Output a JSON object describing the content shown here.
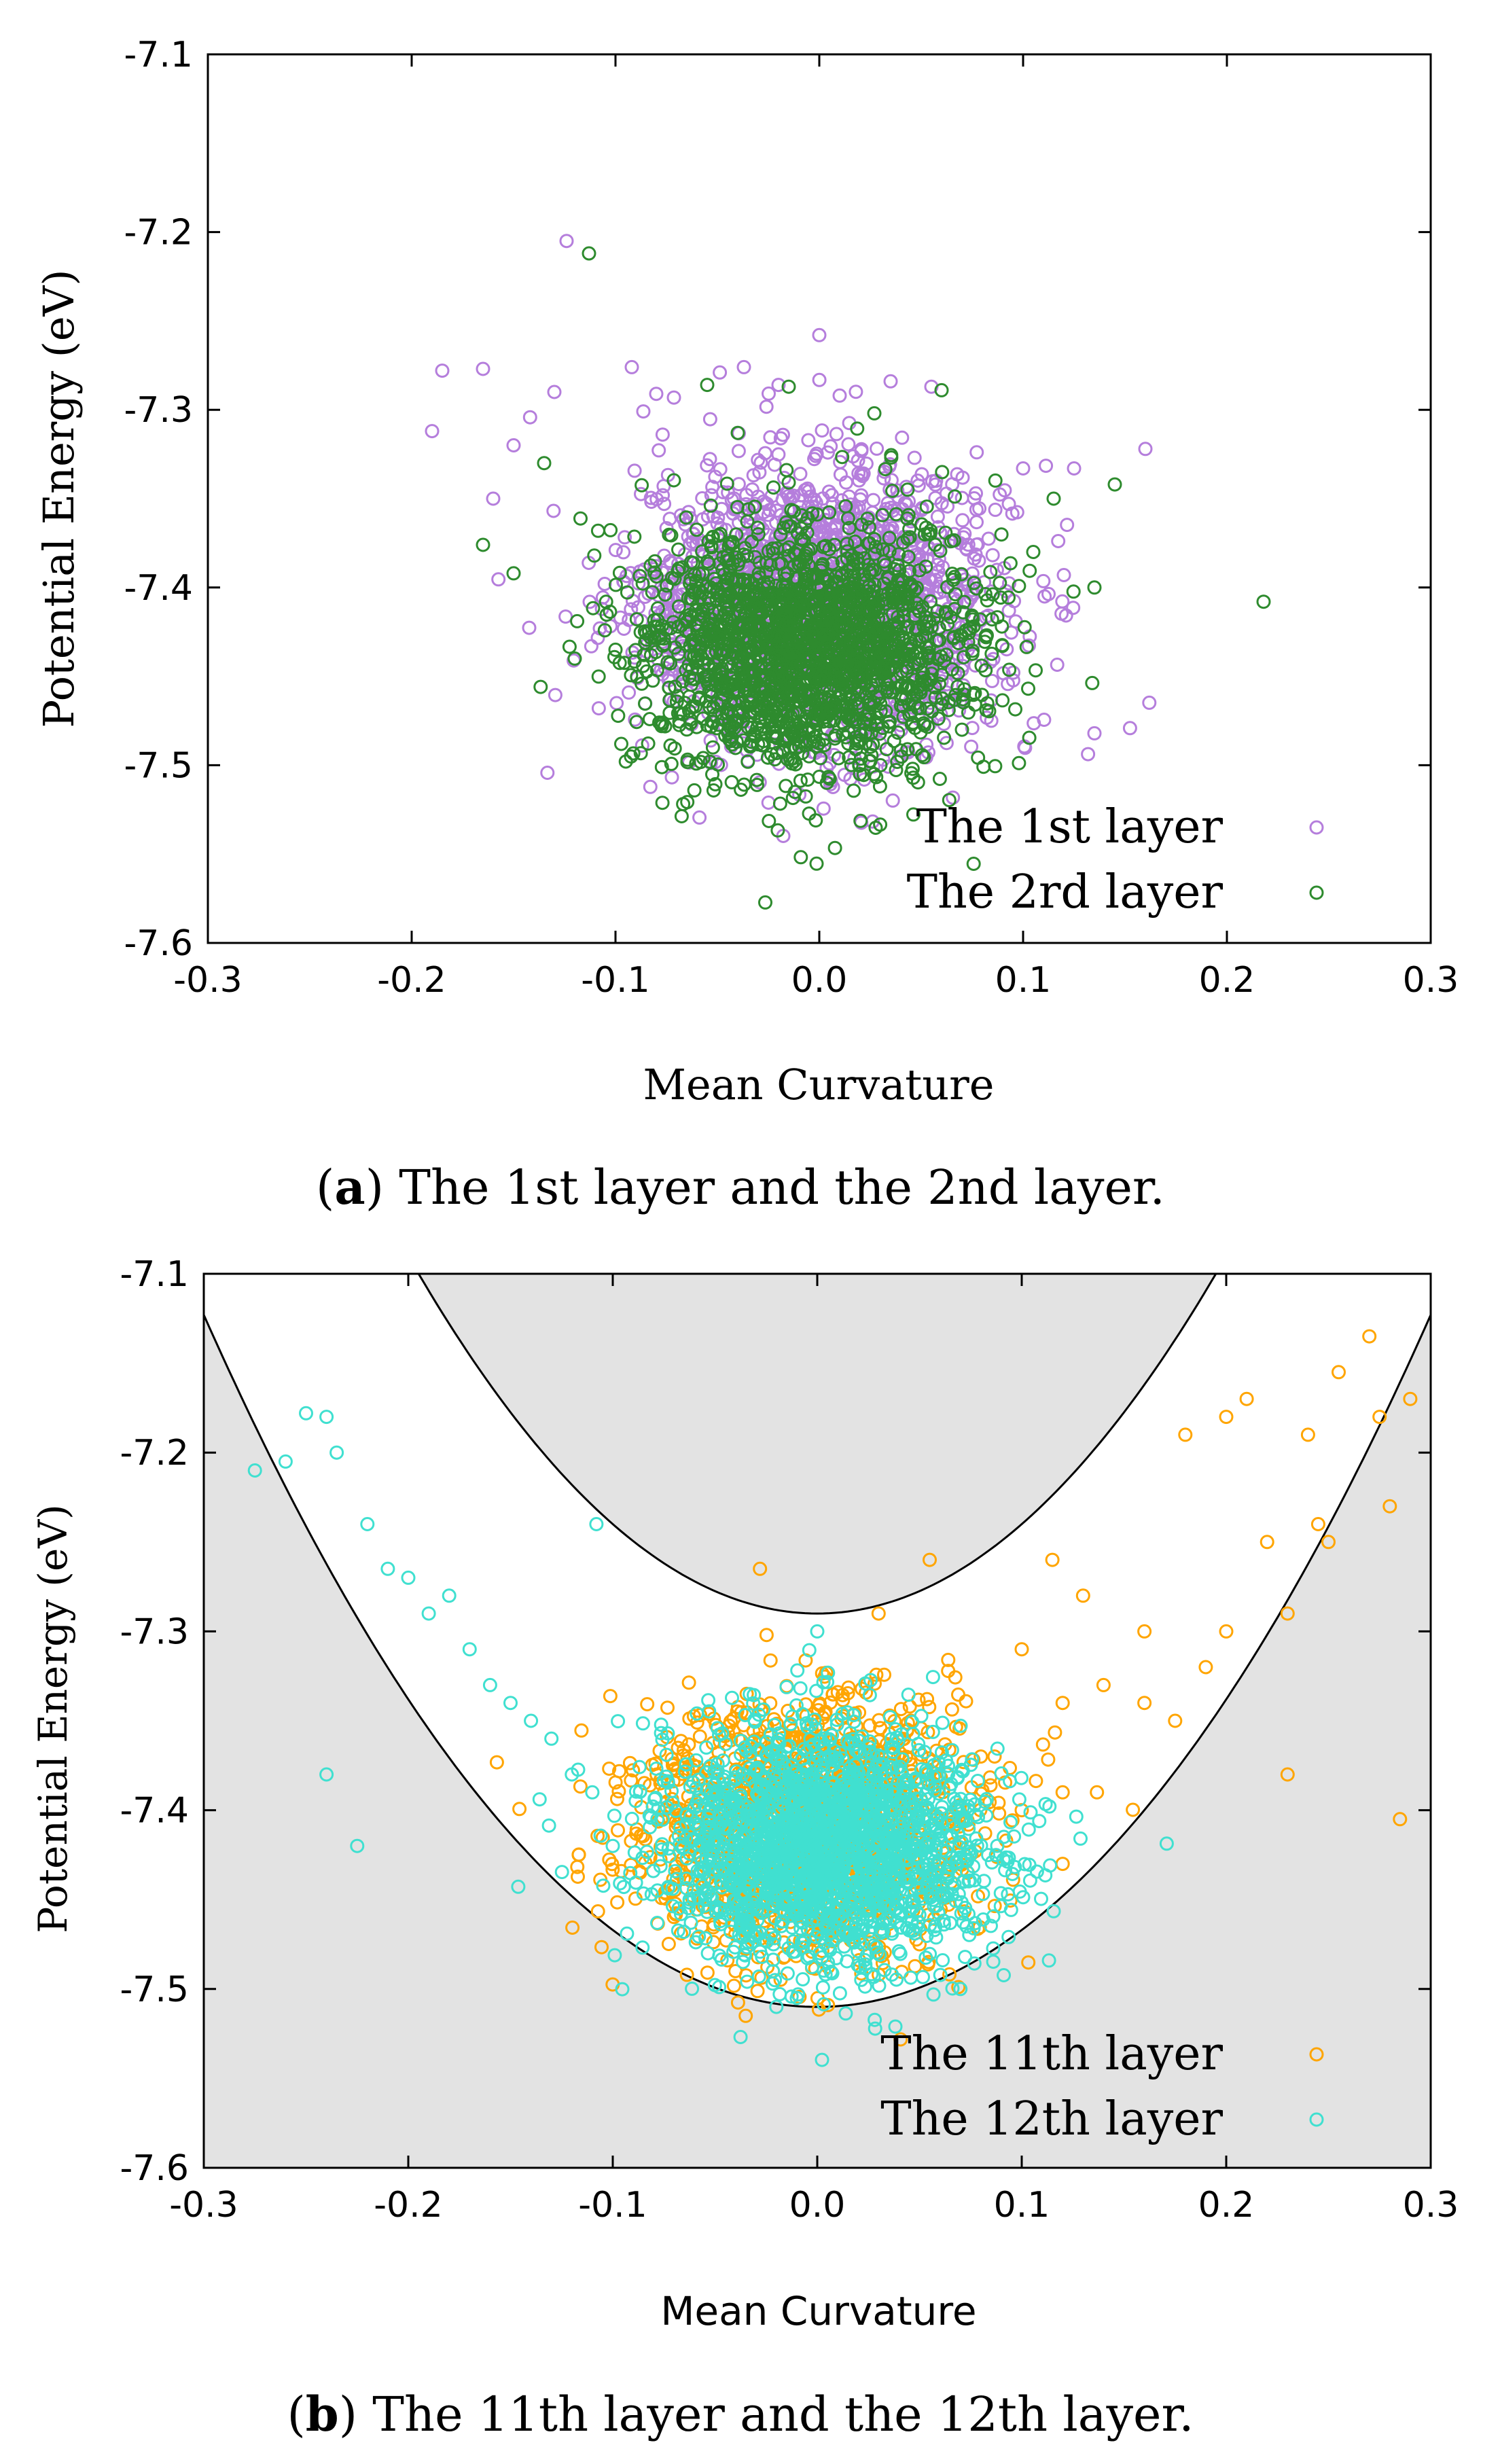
{
  "chart_data": [
    {
      "type": "scatter",
      "caption": {
        "open": "(",
        "letter": "a",
        "text": ") The 1st layer and the 2nd layer."
      },
      "xlabel": "Mean Curvature",
      "ylabel": "Potential Energy (eV)",
      "xlim": [
        -0.3,
        0.3
      ],
      "ylim": [
        -7.6,
        -7.1
      ],
      "xticks": [
        "-0.3",
        "-0.2",
        "-0.1",
        "0.0",
        "0.1",
        "0.2",
        "0.3"
      ],
      "yticks": [
        "-7.1",
        "-7.2",
        "-7.3",
        "-7.4",
        "-7.5",
        "-7.6"
      ],
      "legend_position": "bottom-right",
      "series": [
        {
          "name": "The 1st layer",
          "color": "#b57edc",
          "cluster": {
            "center_x": 0.0,
            "center_y": -7.41,
            "sd_x": 0.045,
            "sd_y": 0.04,
            "count": 1700
          },
          "points": [
            [
              -0.124,
              -7.205
            ],
            [
              -0.185,
              -7.278
            ],
            [
              -0.165,
              -7.277
            ],
            [
              -0.19,
              -7.312
            ],
            [
              -0.092,
              -7.276
            ],
            [
              -0.037,
              -7.276
            ],
            [
              0.0,
              -7.258
            ],
            [
              0.035,
              -7.284
            ],
            [
              0.055,
              -7.287
            ],
            [
              0.1,
              -7.333
            ],
            [
              0.125,
              -7.333
            ],
            [
              0.16,
              -7.322
            ],
            [
              0.12,
              -7.393
            ],
            [
              -0.02,
              -7.286
            ],
            [
              0.01,
              -7.292
            ],
            [
              -0.08,
              -7.291
            ],
            [
              -0.13,
              -7.29
            ],
            [
              -0.15,
              -7.32
            ],
            [
              -0.16,
              -7.35
            ]
          ]
        },
        {
          "name": "The 2rd layer",
          "color": "#2e8b2e",
          "cluster": {
            "center_x": -0.005,
            "center_y": -7.435,
            "sd_x": 0.04,
            "sd_y": 0.035,
            "count": 2000
          },
          "points": [
            [
              -0.113,
              -7.212
            ],
            [
              -0.055,
              -7.286
            ],
            [
              -0.015,
              -7.287
            ],
            [
              0.06,
              -7.289
            ],
            [
              0.027,
              -7.302
            ],
            [
              -0.04,
              -7.313
            ],
            [
              0.218,
              -7.408
            ],
            [
              0.145,
              -7.342
            ],
            [
              0.135,
              -7.4
            ],
            [
              0.115,
              -7.35
            ],
            [
              0.105,
              -7.38
            ],
            [
              -0.165,
              -7.376
            ],
            [
              -0.15,
              -7.392
            ],
            [
              -0.135,
              -7.33
            ],
            [
              -0.12,
              -7.44
            ],
            [
              -0.1,
              -7.435
            ],
            [
              0.02,
              -7.505
            ],
            [
              0.03,
              -7.5
            ],
            [
              0.07,
              -7.48
            ],
            [
              -0.005,
              -7.495
            ]
          ]
        }
      ],
      "legend": [
        {
          "label": "The 1st layer",
          "color": "#b57edc"
        },
        {
          "label": "The 2rd layer",
          "color": "#2e8b2e"
        }
      ]
    },
    {
      "type": "scatter",
      "caption": {
        "open": "(",
        "letter": "b",
        "text": ") The 11th layer and the 12th layer."
      },
      "xlabel": "Mean Curvature",
      "ylabel": "Potential Energy (eV)",
      "xlim": [
        -0.3,
        0.3
      ],
      "ylim": [
        -7.6,
        -7.1
      ],
      "xticks": [
        "-0.3",
        "-0.2",
        "-0.1",
        "0.0",
        "0.1",
        "0.2",
        "0.3"
      ],
      "yticks": [
        "-7.1",
        "-7.2",
        "-7.3",
        "-7.4",
        "-7.5",
        "-7.6"
      ],
      "legend_position": "bottom-right",
      "background_color": "#e3e3e3",
      "band": {
        "upper_curve": {
          "vertex_x": 0.0,
          "vertex_y": -7.29,
          "coefficient": 5.0
        },
        "lower_curve": {
          "vertex_x": 0.0,
          "vertex_y": -7.51,
          "coefficient": 4.3
        }
      },
      "series": [
        {
          "name": "The 11th layer",
          "color": "#ffa500",
          "cluster": {
            "center_x": -0.005,
            "center_y": -7.41,
            "sd_x": 0.04,
            "sd_y": 0.035,
            "count": 1500
          },
          "points": [
            [
              0.27,
              -7.135
            ],
            [
              0.29,
              -7.17
            ],
            [
              0.275,
              -7.18
            ],
            [
              0.255,
              -7.155
            ],
            [
              0.24,
              -7.19
            ],
            [
              0.21,
              -7.17
            ],
            [
              0.2,
              -7.18
            ],
            [
              0.18,
              -7.19
            ],
            [
              0.28,
              -7.23
            ],
            [
              0.245,
              -7.24
            ],
            [
              0.25,
              -7.25
            ],
            [
              0.22,
              -7.25
            ],
            [
              0.23,
              -7.29
            ],
            [
              0.2,
              -7.3
            ],
            [
              0.19,
              -7.32
            ],
            [
              0.16,
              -7.3
            ],
            [
              0.14,
              -7.33
            ],
            [
              0.12,
              -7.34
            ],
            [
              0.115,
              -7.26
            ],
            [
              0.13,
              -7.28
            ],
            [
              0.1,
              -7.31
            ],
            [
              0.23,
              -7.38
            ],
            [
              0.285,
              -7.405
            ],
            [
              0.12,
              -7.39
            ],
            [
              0.12,
              -7.43
            ],
            [
              0.1,
              -7.4
            ],
            [
              0.055,
              -7.26
            ],
            [
              -0.028,
              -7.265
            ],
            [
              0.03,
              -7.29
            ],
            [
              -0.035,
              -7.515
            ],
            [
              -0.04,
              -7.49
            ],
            [
              0.03,
              -7.48
            ],
            [
              0.05,
              -7.475
            ],
            [
              0.16,
              -7.34
            ],
            [
              0.175,
              -7.35
            ],
            [
              0.08,
              -7.37
            ]
          ]
        },
        {
          "name": "The 12th layer",
          "color": "#40e0d0",
          "cluster": {
            "center_x": 0.005,
            "center_y": -7.42,
            "sd_x": 0.04,
            "sd_y": 0.033,
            "count": 2000
          },
          "points": [
            [
              -0.275,
              -7.21
            ],
            [
              -0.26,
              -7.205
            ],
            [
              -0.25,
              -7.178
            ],
            [
              -0.24,
              -7.18
            ],
            [
              -0.235,
              -7.2
            ],
            [
              -0.22,
              -7.24
            ],
            [
              -0.21,
              -7.265
            ],
            [
              -0.2,
              -7.27
            ],
            [
              -0.19,
              -7.29
            ],
            [
              -0.18,
              -7.28
            ],
            [
              -0.17,
              -7.31
            ],
            [
              -0.16,
              -7.33
            ],
            [
              -0.15,
              -7.34
            ],
            [
              -0.14,
              -7.35
            ],
            [
              -0.13,
              -7.36
            ],
            [
              -0.12,
              -7.38
            ],
            [
              -0.24,
              -7.38
            ],
            [
              -0.225,
              -7.42
            ],
            [
              -0.108,
              -7.24
            ],
            [
              -0.11,
              -7.39
            ],
            [
              -0.1,
              -7.42
            ],
            [
              0.07,
              -7.5
            ],
            [
              -0.01,
              -7.505
            ],
            [
              -0.02,
              -7.51
            ],
            [
              0.0,
              -7.3
            ]
          ]
        }
      ],
      "legend": [
        {
          "label": "The 11th layer",
          "color": "#ffa500"
        },
        {
          "label": "The 12th layer",
          "color": "#40e0d0"
        }
      ]
    }
  ]
}
